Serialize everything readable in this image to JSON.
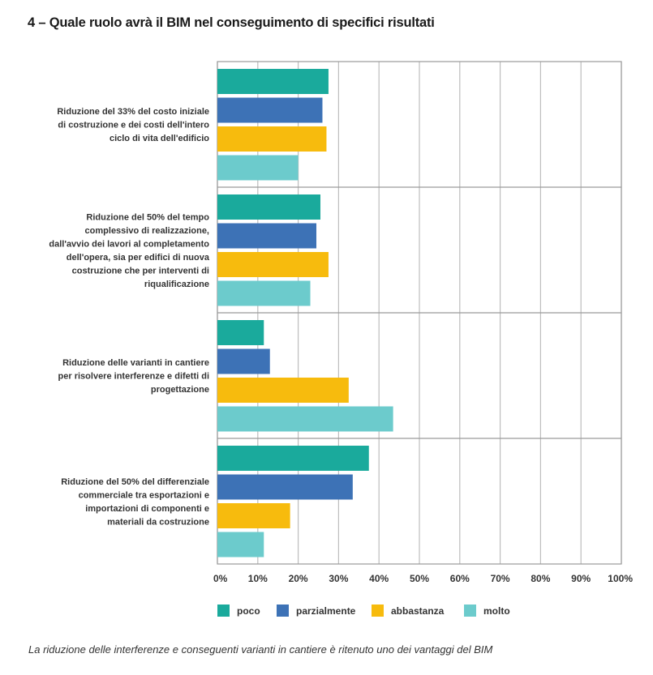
{
  "title": "4 – Quale ruolo avrà il BIM nel conseguimento di specifici risultati",
  "caption": "La riduzione delle interferenze e conseguenti varianti in cantiere è ritenuto uno dei vantaggi del BIM",
  "chart_data": {
    "type": "bar",
    "orientation": "horizontal",
    "title": "4 – Quale ruolo avrà il BIM nel conseguimento di specifici risultati",
    "categories": [
      [
        "Riduzione del 33% del costo iniziale",
        "di costruzione e dei costi dell'intero",
        "ciclo di vita dell'edificio"
      ],
      [
        "Riduzione del 50% del tempo",
        "complessivo di realizzazione,",
        "dall'avvio dei lavori al completamento",
        "dell'opera, sia per edifici di nuova",
        "costruzione che per interventi di",
        "riqualificazione"
      ],
      [
        "Riduzione delle varianti in cantiere",
        "per risolvere interferenze e difetti di",
        "progettazione"
      ],
      [
        "Riduzione del 50% del differenziale",
        "commerciale tra esportazioni e",
        "importazioni di componenti e",
        "materiali da costruzione"
      ]
    ],
    "series": [
      {
        "name": "poco",
        "color": "#1aaa9c",
        "values": [
          27.5,
          25.5,
          11.5,
          37.5
        ]
      },
      {
        "name": "parzialmente",
        "color": "#3d72b6",
        "values": [
          26,
          24.5,
          13,
          33.5
        ]
      },
      {
        "name": "abbastanza",
        "color": "#f7bb0d",
        "values": [
          27,
          27.5,
          32.5,
          18
        ]
      },
      {
        "name": "molto",
        "color": "#6ccbcc",
        "values": [
          20,
          23,
          43.5,
          11.5
        ]
      }
    ],
    "x_ticks": [
      "0%",
      "10%",
      "20%",
      "30%",
      "40%",
      "50%",
      "60%",
      "70%",
      "80%",
      "90%",
      "100%"
    ],
    "xlim": [
      0,
      100
    ],
    "grid": true,
    "legend_position": "bottom"
  }
}
